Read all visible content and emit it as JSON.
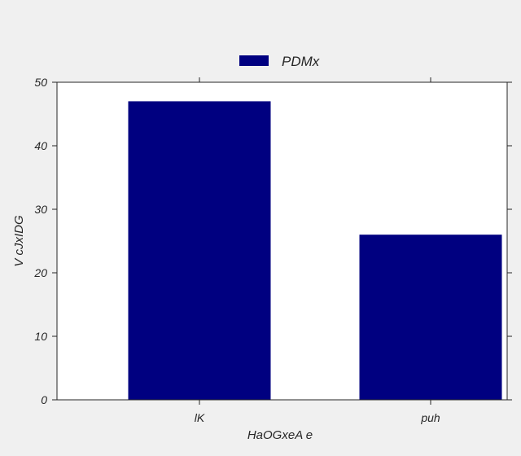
{
  "chart_data": {
    "type": "bar",
    "categories": [
      "lK",
      "puh"
    ],
    "series": [
      {
        "name": "PDMx",
        "values": [
          47,
          26
        ],
        "color": "#000080"
      }
    ],
    "xlabel": "HaOGxeA e",
    "ylabel": "V cJxIDG",
    "ylim": [
      0,
      50
    ],
    "yticks": [
      0,
      10,
      20,
      30,
      40,
      50
    ],
    "grid": false,
    "legend_position": "top-center",
    "background_color": "#f0f0f0",
    "plot_background": "#ffffff"
  }
}
